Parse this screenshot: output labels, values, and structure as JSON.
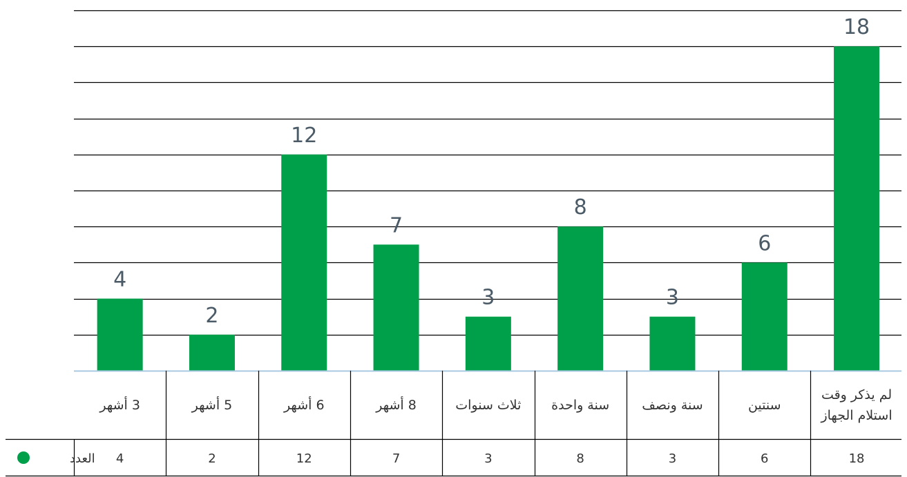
{
  "chart_data": {
    "type": "bar",
    "categories": [
      "3 أشهر",
      "5 أشهر",
      "6 أشهر",
      "8 أشهر",
      "ثلاث سنوات",
      "سنة واحدة",
      "سنة ونصف",
      "سنتين",
      "لم يذكر وقت استلام الجهاز"
    ],
    "category_lines": [
      [
        "3 أشهر"
      ],
      [
        "5 أشهر"
      ],
      [
        "6 أشهر"
      ],
      [
        "8 أشهر"
      ],
      [
        "ثلاث سنوات"
      ],
      [
        "سنة واحدة"
      ],
      [
        "سنة ونصف"
      ],
      [
        "سنتين"
      ],
      [
        "لم يذكر وقت",
        "استلام الجهاز"
      ]
    ],
    "series": [
      {
        "name": "العدد",
        "values": [
          4,
          2,
          12,
          7,
          3,
          8,
          3,
          6,
          18
        ]
      }
    ],
    "ylim": [
      0,
      20
    ],
    "ytick_step": 2,
    "grid": true,
    "data_labels": true,
    "data_table": true,
    "colors": {
      "bar": "#00a04b",
      "grid": "#000000",
      "axis": "#a8c8e0",
      "label": "#4a5a66",
      "text": "#333333"
    }
  }
}
